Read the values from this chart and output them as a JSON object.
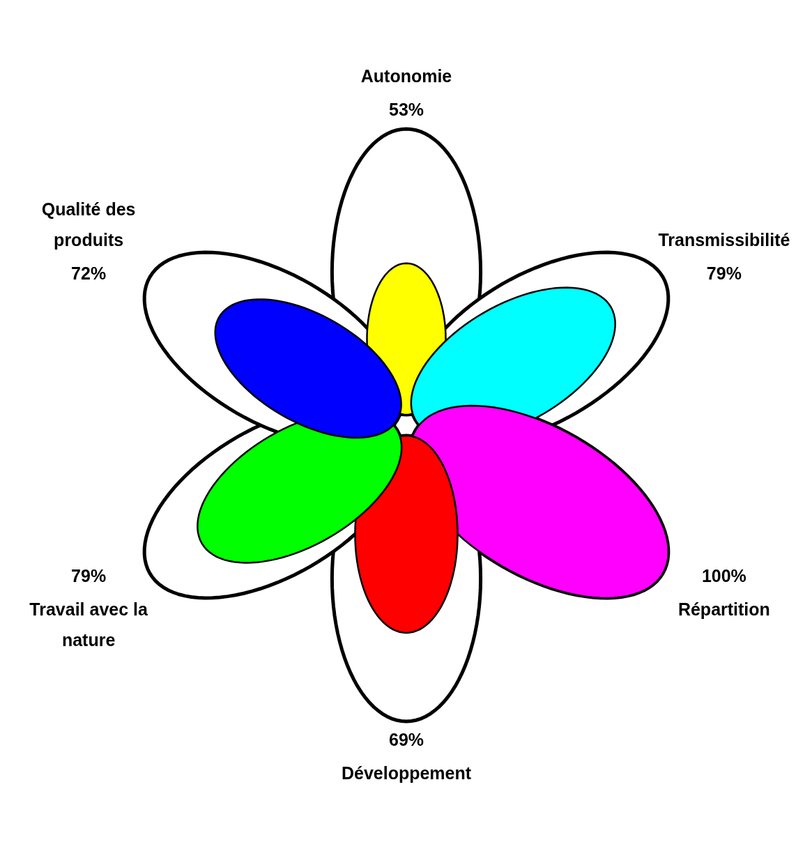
{
  "chart_data": {
    "type": "other",
    "categories": [
      "Autonomie",
      "Transmissibilité",
      "Répartition",
      "Développement",
      "Travail avec la nature",
      "Qualité des produits"
    ],
    "values": [
      53,
      79,
      100,
      69,
      79,
      72
    ],
    "value_labels": [
      "53%",
      "79%",
      "100%",
      "69%",
      "79%",
      "72%"
    ],
    "colors": [
      "#ffff00",
      "#00ffff",
      "#ff00ff",
      "#ff0000",
      "#00ff00",
      "#0000ff"
    ]
  }
}
